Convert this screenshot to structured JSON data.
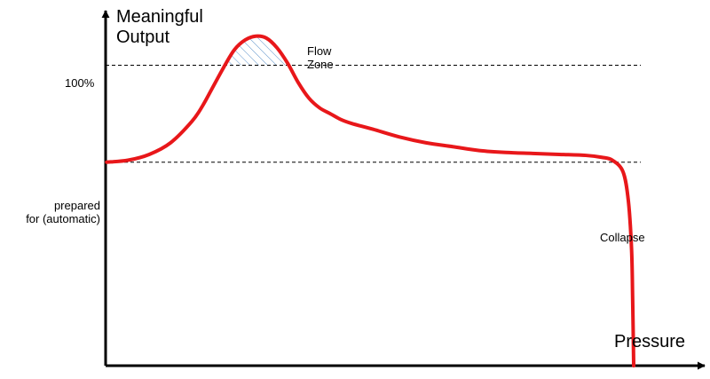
{
  "chart_data": {
    "type": "line",
    "ylabel_line1": "Meaningful",
    "ylabel_line2": "Output",
    "xlabel": "Pressure",
    "ytick_100": "100%",
    "ytick_prepared_line1": "prepared",
    "ytick_prepared_line2": "for (automatic)",
    "annotation_flow_line1": "Flow",
    "annotation_flow_line2": "Zone",
    "annotation_collapse": "Collapse",
    "reference_lines": [
      {
        "label": "100%",
        "y": 100
      },
      {
        "label": "prepared for (automatic)",
        "y": 50
      }
    ],
    "series": [
      {
        "x": [
          0,
          4,
          8,
          12,
          16,
          18,
          20,
          22,
          24,
          26,
          28,
          30,
          32,
          34,
          36,
          38,
          40,
          42,
          44,
          46,
          50,
          55,
          60,
          65,
          70,
          75,
          80,
          85,
          90,
          93,
          95,
          97,
          98,
          98.6,
          98.8,
          99
        ],
        "y": [
          50,
          51,
          54,
          60,
          71,
          79,
          89,
          99,
          108,
          113,
          115,
          114,
          109,
          101,
          91,
          83,
          78,
          75,
          72,
          70,
          67,
          63,
          60,
          58,
          56,
          55,
          54.5,
          54,
          53.5,
          52.5,
          51,
          45,
          30,
          5,
          -20,
          -55
        ]
      }
    ],
    "flow_zone": {
      "y_min": 100
    },
    "xlim": [
      -0.2,
      110
    ],
    "ylim": [
      -55,
      130
    ],
    "colors": {
      "curve": "#e8171a",
      "axis": "#000000",
      "reference": "#000000",
      "flow_hatch": "#4a86c5"
    }
  }
}
